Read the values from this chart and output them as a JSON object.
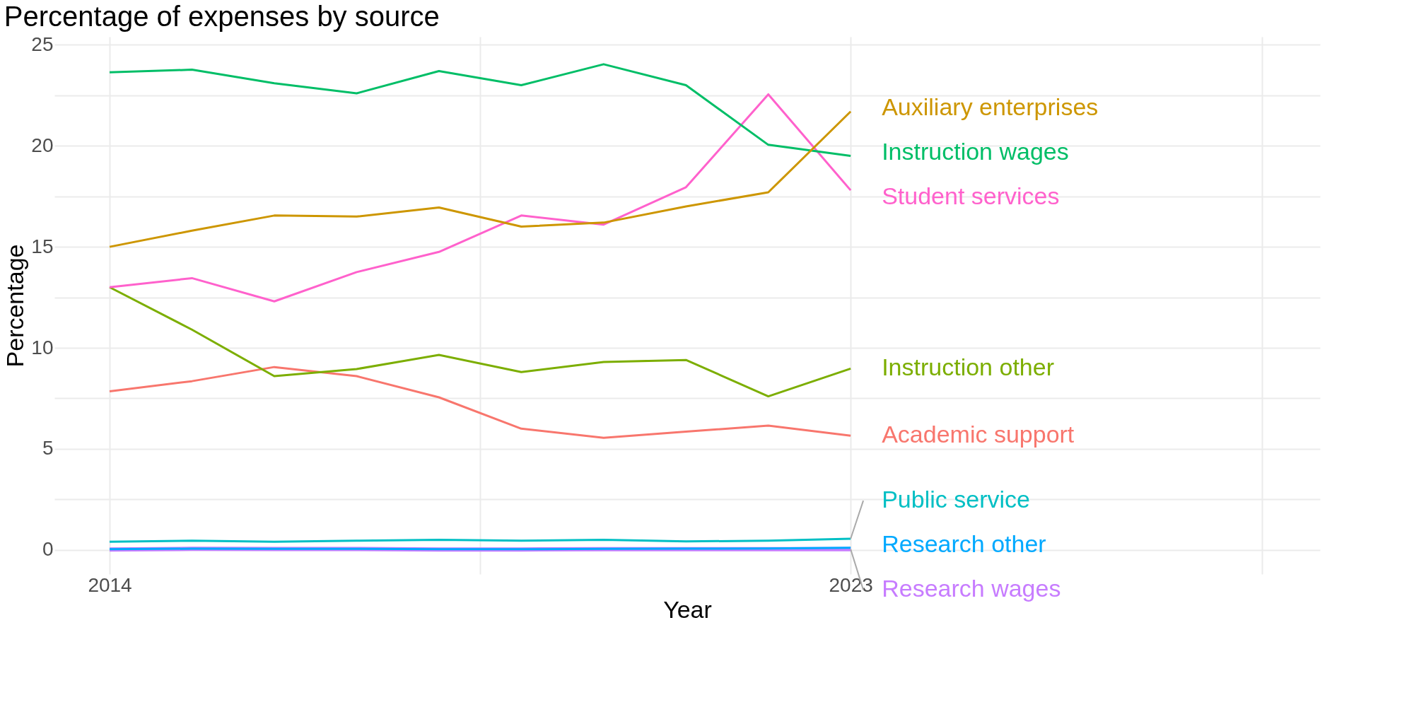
{
  "chart_data": {
    "type": "line",
    "title": "Percentage of expenses by source",
    "xlabel": "Year",
    "ylabel": "Percentage",
    "x": [
      2014,
      2015,
      2016,
      2017,
      2018,
      2019,
      2020,
      2021,
      2022,
      2023
    ],
    "series": [
      {
        "name": "Auxiliary enterprises",
        "color": "#cd9600",
        "values": [
          15.0,
          15.8,
          16.55,
          16.5,
          16.95,
          16.0,
          16.2,
          17.0,
          17.7,
          21.7
        ]
      },
      {
        "name": "Instruction wages",
        "color": "#00be67",
        "values": [
          23.64,
          23.77,
          23.1,
          22.6,
          23.7,
          23.0,
          24.04,
          23.0,
          20.05,
          19.5
        ]
      },
      {
        "name": "Student services",
        "color": "#ff61cc",
        "values": [
          13.0,
          13.45,
          12.3,
          13.75,
          14.75,
          16.55,
          16.1,
          17.95,
          22.55,
          17.8
        ]
      },
      {
        "name": "Instruction other",
        "color": "#7cae00",
        "values": [
          13.0,
          10.9,
          8.6,
          8.95,
          9.65,
          8.8,
          9.3,
          9.4,
          7.6,
          8.97
        ]
      },
      {
        "name": "Academic support",
        "color": "#f8766d",
        "values": [
          7.85,
          8.35,
          9.05,
          8.6,
          7.55,
          6.0,
          5.55,
          5.85,
          6.15,
          5.65
        ]
      },
      {
        "name": "Public service",
        "color": "#00bfc4",
        "values": [
          0.4,
          0.45,
          0.4,
          0.45,
          0.5,
          0.45,
          0.5,
          0.42,
          0.45,
          0.55
        ]
      },
      {
        "name": "Research other",
        "color": "#00a9ff",
        "values": [
          0.03,
          0.06,
          0.05,
          0.05,
          0.03,
          0.03,
          0.05,
          0.06,
          0.07,
          0.1
        ]
      },
      {
        "name": "Research wages",
        "color": "#c77cff",
        "values": [
          0.02,
          0.05,
          0.04,
          0.04,
          0.02,
          0.02,
          0.03,
          0.03,
          0.03,
          0.03
        ]
      }
    ],
    "xlim": [
      2013.33,
      2028.7
    ],
    "xticks": [
      2014,
      {
        "value": 2018.5,
        "label": null
      },
      2023,
      {
        "value": 2028,
        "label": null
      }
    ],
    "ylim": [
      -1.2,
      25.4
    ],
    "yticks": [
      0,
      {
        "value": 2.5,
        "label": null
      },
      5,
      {
        "value": 7.5,
        "label": null
      },
      10,
      {
        "value": 12.5,
        "label": null
      },
      15,
      {
        "value": 17.5,
        "label": null
      },
      20,
      {
        "value": 22.5,
        "label": null
      },
      25
    ],
    "grid": true,
    "legend": false,
    "marker": "none",
    "line_style": "solid"
  }
}
